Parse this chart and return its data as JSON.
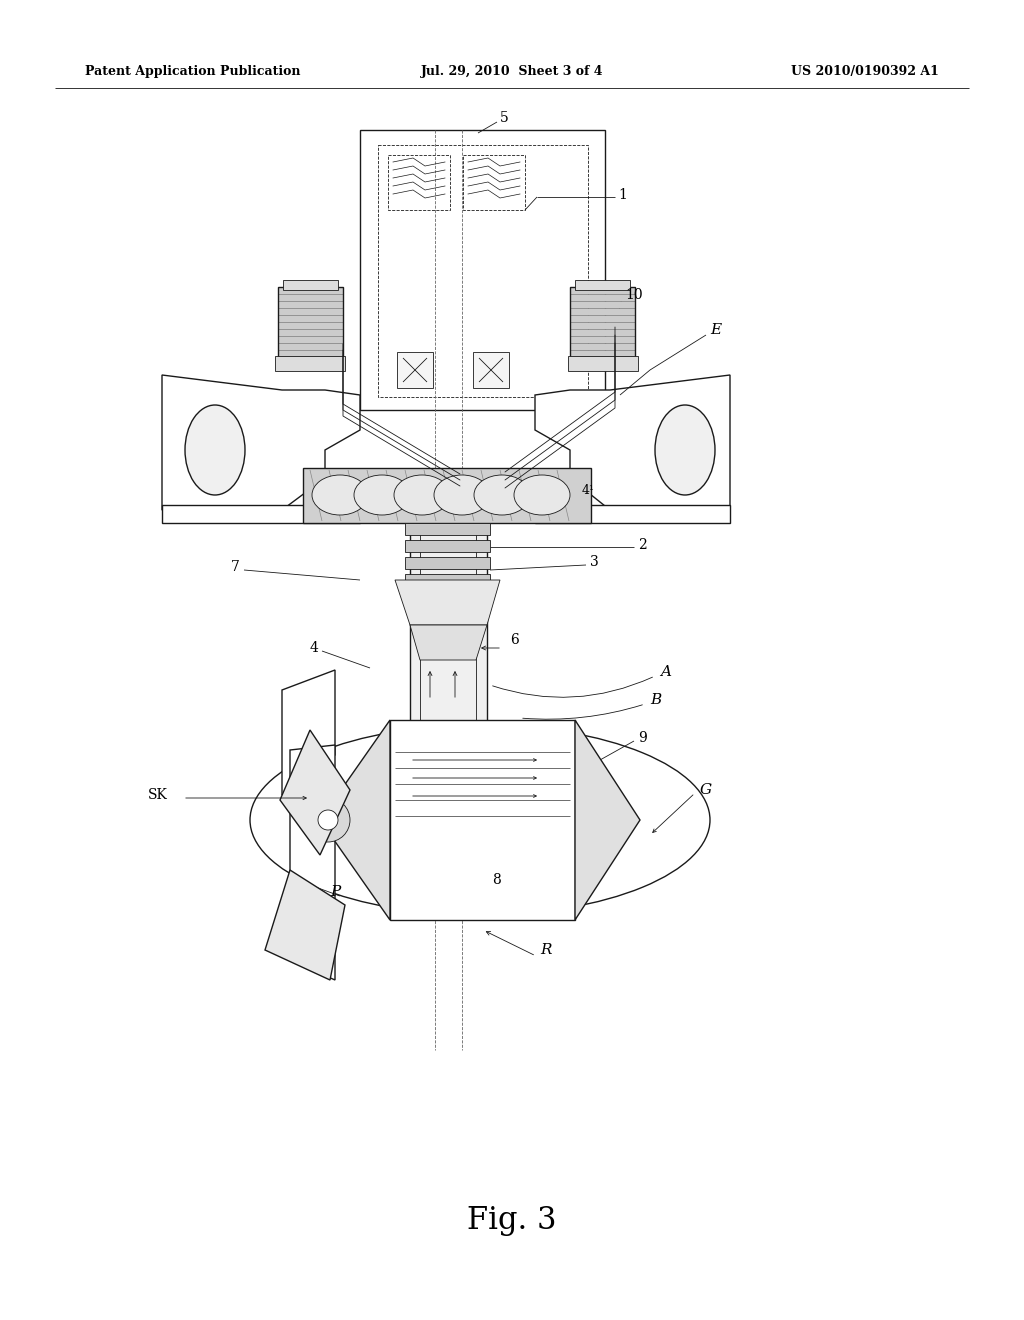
{
  "background_color": "#ffffff",
  "header_left": "Patent Application Publication",
  "header_center": "Jul. 29, 2010  Sheet 3 of 4",
  "header_right": "US 2010/0190392 A1",
  "figure_label": "Fig. 3",
  "lc": "#1a1a1a",
  "lw_thin": 0.6,
  "lw_med": 1.0,
  "lw_thick": 1.5
}
